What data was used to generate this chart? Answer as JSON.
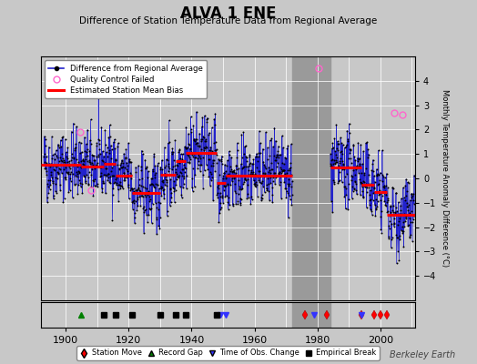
{
  "title": "ALVA 1 ENE",
  "subtitle": "Difference of Station Temperature Data from Regional Average",
  "ylabel": "Monthly Temperature Anomaly Difference (°C)",
  "xlim": [
    1892,
    2011
  ],
  "ylim": [
    -5,
    5
  ],
  "yticks": [
    -4,
    -3,
    -2,
    -1,
    0,
    1,
    2,
    3,
    4
  ],
  "xticks": [
    1900,
    1920,
    1940,
    1960,
    1980,
    2000
  ],
  "bg_color": "#c8c8c8",
  "plot_bg_color": "#c8c8c8",
  "grid_color": "#ffffff",
  "seed": 42,
  "station_move_years": [
    1976,
    1983,
    1994,
    1998,
    2000,
    2002
  ],
  "record_gap_years": [
    1905
  ],
  "obs_change_years": [
    1949,
    1951,
    1979,
    1994
  ],
  "empirical_break_years": [
    1912,
    1916,
    1921,
    1930,
    1935,
    1938,
    1948
  ],
  "gray_band_start": 1972,
  "gray_band_end": 1984,
  "bias_segments": [
    {
      "start": 1892,
      "end": 1905,
      "bias": 0.55
    },
    {
      "start": 1905,
      "end": 1912,
      "bias": 0.5
    },
    {
      "start": 1912,
      "end": 1916,
      "bias": 0.6
    },
    {
      "start": 1916,
      "end": 1921,
      "bias": 0.1
    },
    {
      "start": 1921,
      "end": 1930,
      "bias": -0.6
    },
    {
      "start": 1930,
      "end": 1935,
      "bias": 0.15
    },
    {
      "start": 1935,
      "end": 1938,
      "bias": 0.7
    },
    {
      "start": 1938,
      "end": 1948,
      "bias": 1.05
    },
    {
      "start": 1948,
      "end": 1951,
      "bias": -0.2
    },
    {
      "start": 1951,
      "end": 1972,
      "bias": 0.1
    },
    {
      "start": 1984,
      "end": 1994,
      "bias": 0.45
    },
    {
      "start": 1994,
      "end": 1998,
      "bias": -0.25
    },
    {
      "start": 1998,
      "end": 2000,
      "bias": -0.55
    },
    {
      "start": 2000,
      "end": 2002,
      "bias": -0.55
    },
    {
      "start": 2002,
      "end": 2011,
      "bias": -1.5
    }
  ],
  "qc_failed_points": [
    {
      "year": 1904.5,
      "value": 1.9
    },
    {
      "year": 1908.0,
      "value": -0.5
    },
    {
      "year": 1980.5,
      "value": 4.5
    },
    {
      "year": 2004.5,
      "value": 2.7
    },
    {
      "year": 2007.0,
      "value": 2.6
    }
  ],
  "watermark": "Berkeley Earth",
  "data_noise_std": 0.72,
  "data_noise_ar": 0.25
}
